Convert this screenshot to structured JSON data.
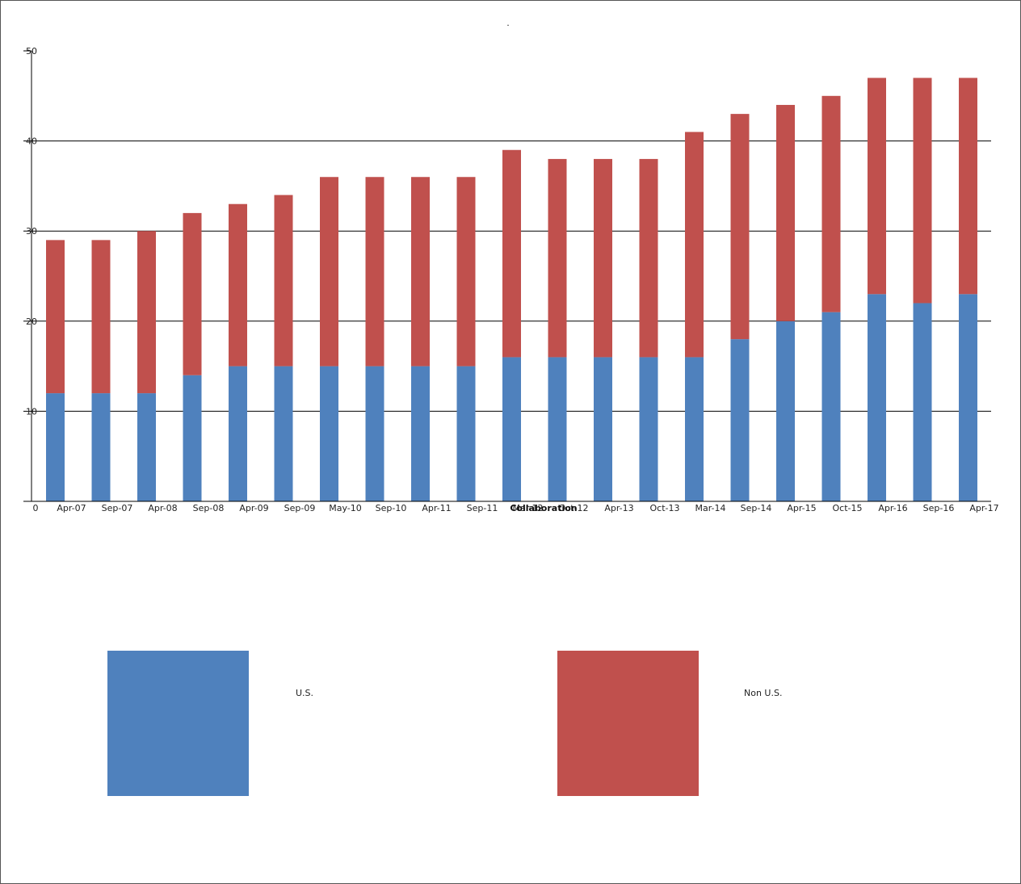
{
  "chart_data": {
    "type": "bar",
    "stacked": true,
    "title": ".",
    "xlabel": "Collaboration",
    "ylabel": "",
    "ylim": [
      0,
      50
    ],
    "yticks": [
      10,
      20,
      30,
      40,
      50
    ],
    "origin_label": "0",
    "grid": true,
    "legend_position": "bottom",
    "categories": [
      "Apr-07",
      "Sep-07",
      "Apr-08",
      "Sep-08",
      "Apr-09",
      "Sep-09",
      "May-10",
      "Sep-10",
      "Apr-11",
      "Sep-11",
      "Mar-12",
      "Oct-12",
      "Apr-13",
      "Oct-13",
      "Mar-14",
      "Sep-14",
      "Apr-15",
      "Oct-15",
      "Apr-16",
      "Sep-16",
      "Apr-17"
    ],
    "series": [
      {
        "name": "U.S.",
        "color": "#4f81bd",
        "values": [
          12,
          12,
          12,
          14,
          15,
          15,
          15,
          15,
          15,
          15,
          16,
          16,
          16,
          16,
          16,
          18,
          20,
          21,
          23,
          22,
          23
        ]
      },
      {
        "name": "Non U.S.",
        "color": "#c0504d",
        "values": [
          17,
          17,
          18,
          18,
          18,
          19,
          21,
          21,
          21,
          21,
          23,
          22,
          22,
          22,
          25,
          25,
          24,
          24,
          24,
          25,
          24
        ]
      }
    ]
  }
}
